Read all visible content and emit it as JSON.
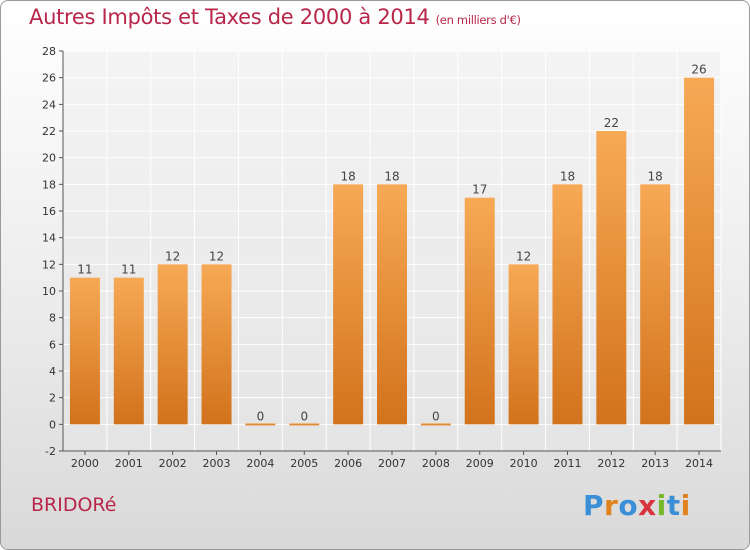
{
  "header": {
    "title": "Autres Impôts et Taxes de 2000 à 2014",
    "subtitle": "(en milliers d'€)"
  },
  "footer": {
    "commune": "BRIDORé",
    "logo_text": "Proxiti"
  },
  "colors": {
    "title": "#b8274a",
    "bar_top": "#f7a955",
    "bar_bottom": "#d2721c",
    "logo_letters": [
      "#3a8fd6",
      "#e0821d",
      "#3a8fd6",
      "#d8343e",
      "#76b82a",
      "#3a8fd6",
      "#e0821d"
    ]
  },
  "chart_data": {
    "type": "bar",
    "title": "Autres Impôts et Taxes de 2000 à 2014",
    "subtitle": "(en milliers d'€)",
    "categories": [
      "2000",
      "2001",
      "2002",
      "2003",
      "2004",
      "2005",
      "2006",
      "2007",
      "2008",
      "2009",
      "2010",
      "2011",
      "2012",
      "2013",
      "2014"
    ],
    "values": [
      11,
      11,
      12,
      12,
      0,
      0,
      18,
      18,
      0,
      17,
      12,
      18,
      22,
      18,
      26
    ],
    "ylim": [
      -2,
      28
    ],
    "yticks": [
      -2,
      0,
      2,
      4,
      6,
      8,
      10,
      12,
      14,
      16,
      18,
      20,
      22,
      24,
      26,
      28
    ],
    "xlabel": "",
    "ylabel": "",
    "grid": true,
    "data_labels": true
  }
}
